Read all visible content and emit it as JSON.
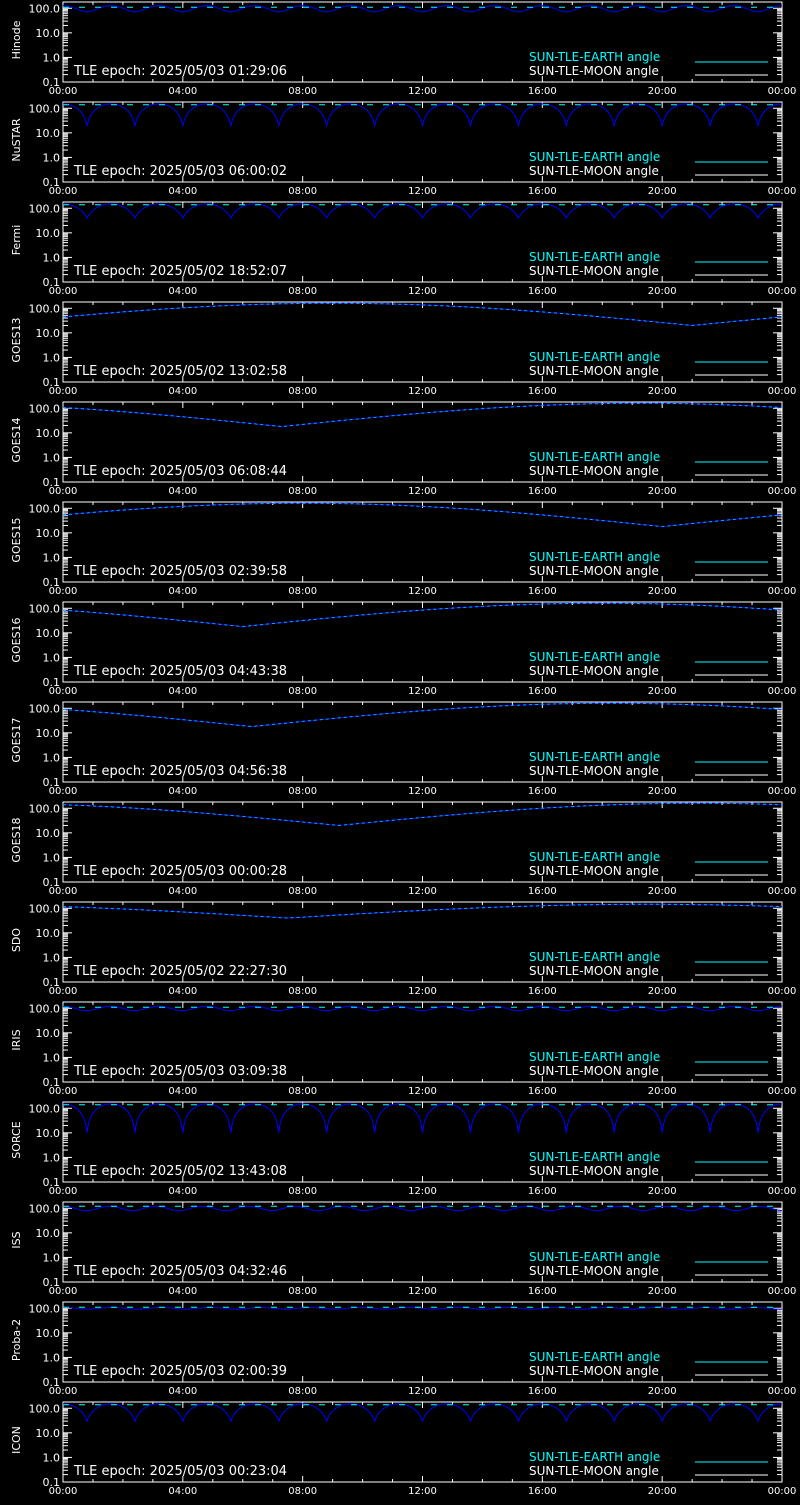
{
  "figure": {
    "time_tick_labels": [
      "00:00",
      "04:00",
      "08:00",
      "12:00",
      "16:00",
      "20:00",
      "00:00"
    ],
    "y_tick_labels": [
      "100.0",
      "10.0",
      "1.0",
      "0.1"
    ],
    "legend": {
      "earth_label": "SUN-TLE-EARTH angle",
      "moon_label": "SUN-TLE-MOON angle"
    },
    "colors": {
      "background": "#000000",
      "axes": "#ffffff",
      "earth": "#00ffff",
      "moon": "#0000ff",
      "legend_earth_text": "#00ffff",
      "legend_moon_text": "#ffffff"
    }
  },
  "chart_data": [
    {
      "type": "line",
      "panel": "Hinode",
      "tle_epoch": "TLE epoch: 2025/05/03 01:29:06",
      "x_range_hours": [
        0,
        24
      ],
      "y_scale": "log",
      "ylim": [
        0.1,
        180
      ],
      "series": [
        {
          "name": "SUN-TLE-EARTH angle",
          "model": "top_flat",
          "level": 110
        },
        {
          "name": "SUN-TLE-MOON angle",
          "model": "orbital",
          "period_hours": 1.6,
          "mean": 100,
          "amplitude": 28,
          "shape": "sine"
        }
      ]
    },
    {
      "type": "line",
      "panel": "NuSTAR",
      "tle_epoch": "TLE epoch: 2025/05/03 06:00:02",
      "x_range_hours": [
        0,
        24
      ],
      "y_scale": "log",
      "ylim": [
        0.1,
        180
      ],
      "series": [
        {
          "name": "SUN-TLE-EARTH angle",
          "model": "top_flat",
          "level": 140
        },
        {
          "name": "SUN-TLE-MOON angle",
          "model": "orbital",
          "period_hours": 1.6,
          "max": 150,
          "min": 20,
          "shape": "cusp"
        }
      ]
    },
    {
      "type": "line",
      "panel": "Fermi",
      "tle_epoch": "TLE epoch: 2025/05/02 18:52:07",
      "x_range_hours": [
        0,
        24
      ],
      "y_scale": "log",
      "ylim": [
        0.1,
        180
      ],
      "series": [
        {
          "name": "SUN-TLE-EARTH angle",
          "model": "top_flat",
          "level": 140
        },
        {
          "name": "SUN-TLE-MOON angle",
          "model": "orbital",
          "period_hours": 1.6,
          "max": 150,
          "min": 40,
          "shape": "cusp"
        }
      ]
    },
    {
      "type": "line",
      "panel": "GOES13",
      "tle_epoch": "TLE epoch: 2025/05/02 13:02:58",
      "x_range_hours": [
        0,
        24
      ],
      "y_scale": "log",
      "ylim": [
        0.1,
        180
      ],
      "series": [
        {
          "name": "SUN-TLE-EARTH angle",
          "model": "geo",
          "min_time_hours": 21.0,
          "max": 160,
          "min": 20
        },
        {
          "name": "SUN-TLE-MOON angle",
          "model": "geo",
          "min_time_hours": 21.0,
          "max": 160,
          "min": 20
        }
      ]
    },
    {
      "type": "line",
      "panel": "GOES14",
      "tle_epoch": "TLE epoch: 2025/05/03 06:08:44",
      "x_range_hours": [
        0,
        24
      ],
      "y_scale": "log",
      "ylim": [
        0.1,
        180
      ],
      "series": [
        {
          "name": "SUN-TLE-EARTH angle",
          "model": "geo",
          "min_time_hours": 7.3,
          "max": 160,
          "min": 18
        },
        {
          "name": "SUN-TLE-MOON angle",
          "model": "geo",
          "min_time_hours": 7.3,
          "max": 160,
          "min": 18
        }
      ]
    },
    {
      "type": "line",
      "panel": "GOES15",
      "tle_epoch": "TLE epoch: 2025/05/03 02:39:58",
      "x_range_hours": [
        0,
        24
      ],
      "y_scale": "log",
      "ylim": [
        0.1,
        180
      ],
      "series": [
        {
          "name": "SUN-TLE-EARTH angle",
          "model": "geo",
          "min_time_hours": 20.0,
          "max": 160,
          "min": 18
        },
        {
          "name": "SUN-TLE-MOON angle",
          "model": "geo",
          "min_time_hours": 20.0,
          "max": 160,
          "min": 18
        }
      ]
    },
    {
      "type": "line",
      "panel": "GOES16",
      "tle_epoch": "TLE epoch: 2025/05/03 04:43:38",
      "x_range_hours": [
        0,
        24
      ],
      "y_scale": "log",
      "ylim": [
        0.1,
        180
      ],
      "series": [
        {
          "name": "SUN-TLE-EARTH angle",
          "model": "geo",
          "min_time_hours": 6.0,
          "max": 160,
          "min": 18
        },
        {
          "name": "SUN-TLE-MOON angle",
          "model": "geo",
          "min_time_hours": 6.0,
          "max": 160,
          "min": 18
        }
      ]
    },
    {
      "type": "line",
      "panel": "GOES17",
      "tle_epoch": "TLE epoch: 2025/05/03 04:56:38",
      "x_range_hours": [
        0,
        24
      ],
      "y_scale": "log",
      "ylim": [
        0.1,
        180
      ],
      "series": [
        {
          "name": "SUN-TLE-EARTH angle",
          "model": "geo",
          "min_time_hours": 6.3,
          "max": 160,
          "min": 18
        },
        {
          "name": "SUN-TLE-MOON angle",
          "model": "geo",
          "min_time_hours": 6.3,
          "max": 160,
          "min": 18
        }
      ]
    },
    {
      "type": "line",
      "panel": "GOES18",
      "tle_epoch": "TLE epoch: 2025/05/03 00:00:28",
      "x_range_hours": [
        0,
        24
      ],
      "y_scale": "log",
      "ylim": [
        0.1,
        180
      ],
      "series": [
        {
          "name": "SUN-TLE-EARTH angle",
          "model": "geo",
          "min_time_hours": 9.2,
          "max": 160,
          "min": 20
        },
        {
          "name": "SUN-TLE-MOON angle",
          "model": "geo",
          "min_time_hours": 9.2,
          "max": 160,
          "min": 20
        }
      ]
    },
    {
      "type": "line",
      "panel": "SDO",
      "tle_epoch": "TLE epoch: 2025/05/02 22:27:30",
      "x_range_hours": [
        0,
        24
      ],
      "y_scale": "log",
      "ylim": [
        0.1,
        180
      ],
      "series": [
        {
          "name": "SUN-TLE-EARTH angle",
          "model": "geo",
          "min_time_hours": 7.5,
          "max": 145,
          "min": 40
        },
        {
          "name": "SUN-TLE-MOON angle",
          "model": "geo",
          "min_time_hours": 7.5,
          "max": 145,
          "min": 40
        }
      ]
    },
    {
      "type": "line",
      "panel": "IRIS",
      "tle_epoch": "TLE epoch: 2025/05/03 03:09:38",
      "x_range_hours": [
        0,
        24
      ],
      "y_scale": "log",
      "ylim": [
        0.1,
        180
      ],
      "series": [
        {
          "name": "SUN-TLE-EARTH angle",
          "model": "top_flat",
          "level": 110
        },
        {
          "name": "SUN-TLE-MOON angle",
          "model": "orbital",
          "period_hours": 1.6,
          "mean": 100,
          "amplitude": 20,
          "shape": "sine"
        }
      ]
    },
    {
      "type": "line",
      "panel": "SORCE",
      "tle_epoch": "TLE epoch: 2025/05/02 13:43:08",
      "x_range_hours": [
        0,
        24
      ],
      "y_scale": "log",
      "ylim": [
        0.1,
        180
      ],
      "series": [
        {
          "name": "SUN-TLE-EARTH angle",
          "model": "top_flat",
          "level": 140
        },
        {
          "name": "SUN-TLE-MOON angle",
          "model": "orbital",
          "period_hours": 1.6,
          "max": 150,
          "min": 10,
          "shape": "cusp"
        }
      ]
    },
    {
      "type": "line",
      "panel": "ISS",
      "tle_epoch": "TLE epoch: 2025/05/03 04:32:46",
      "x_range_hours": [
        0,
        24
      ],
      "y_scale": "log",
      "ylim": [
        0.1,
        180
      ],
      "series": [
        {
          "name": "SUN-TLE-EARTH angle",
          "model": "top_flat",
          "level": 120
        },
        {
          "name": "SUN-TLE-MOON angle",
          "model": "orbital",
          "period_hours": 1.55,
          "mean": 100,
          "amplitude": 20,
          "shape": "sine"
        }
      ]
    },
    {
      "type": "line",
      "panel": "Proba-2",
      "tle_epoch": "TLE epoch: 2025/05/03 02:00:39",
      "x_range_hours": [
        0,
        24
      ],
      "y_scale": "log",
      "ylim": [
        0.1,
        180
      ],
      "series": [
        {
          "name": "SUN-TLE-EARTH angle",
          "model": "top_flat",
          "level": 110
        },
        {
          "name": "SUN-TLE-MOON angle",
          "model": "orbital",
          "period_hours": 1.65,
          "mean": 100,
          "amplitude": 8,
          "shape": "sine"
        }
      ]
    },
    {
      "type": "line",
      "panel": "ICON",
      "tle_epoch": "TLE epoch: 2025/05/03 00:23:04",
      "x_range_hours": [
        0,
        24
      ],
      "y_scale": "log",
      "ylim": [
        0.1,
        180
      ],
      "series": [
        {
          "name": "SUN-TLE-EARTH angle",
          "model": "top_flat",
          "level": 140
        },
        {
          "name": "SUN-TLE-MOON angle",
          "model": "orbital",
          "period_hours": 1.6,
          "max": 150,
          "min": 30,
          "shape": "cusp"
        }
      ]
    }
  ]
}
